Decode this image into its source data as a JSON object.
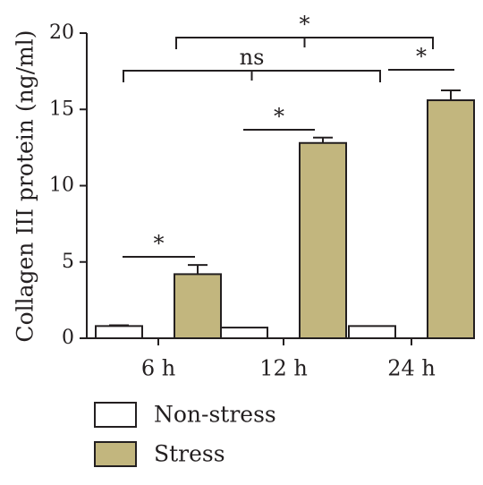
{
  "chart_data": {
    "type": "bar",
    "title": "",
    "xlabel": "",
    "ylabel": "Collagen III protein (ng/ml)",
    "ylim": [
      0,
      20
    ],
    "yticks": [
      "0",
      "5",
      "10",
      "15",
      "20"
    ],
    "categories": [
      "6 h",
      "12 h",
      "24 h"
    ],
    "series": [
      {
        "name": "Non-stress",
        "values": [
          0.8,
          0.7,
          0.8
        ],
        "errors": [
          0.05,
          0.0,
          0.0
        ],
        "color": "#ffffff"
      },
      {
        "name": "Stress",
        "values": [
          4.2,
          12.8,
          15.6
        ],
        "errors": [
          0.6,
          0.35,
          0.65
        ],
        "color": "#c2b67e"
      }
    ],
    "legend": {
      "position": "bottom-left"
    },
    "grid": false,
    "annotations": [
      {
        "label": "*",
        "comparison": "6 h Non-stress vs 6 h Stress"
      },
      {
        "label": "*",
        "comparison": "12 h Non-stress vs 12 h Stress"
      },
      {
        "label": "*",
        "comparison": "24 h Non-stress vs 24 h Stress"
      },
      {
        "label": "ns",
        "comparison": "6 h Non-stress vs 24 h Non-stress"
      },
      {
        "label": "*",
        "comparison": "6 h Stress vs 24 h Stress"
      }
    ]
  }
}
